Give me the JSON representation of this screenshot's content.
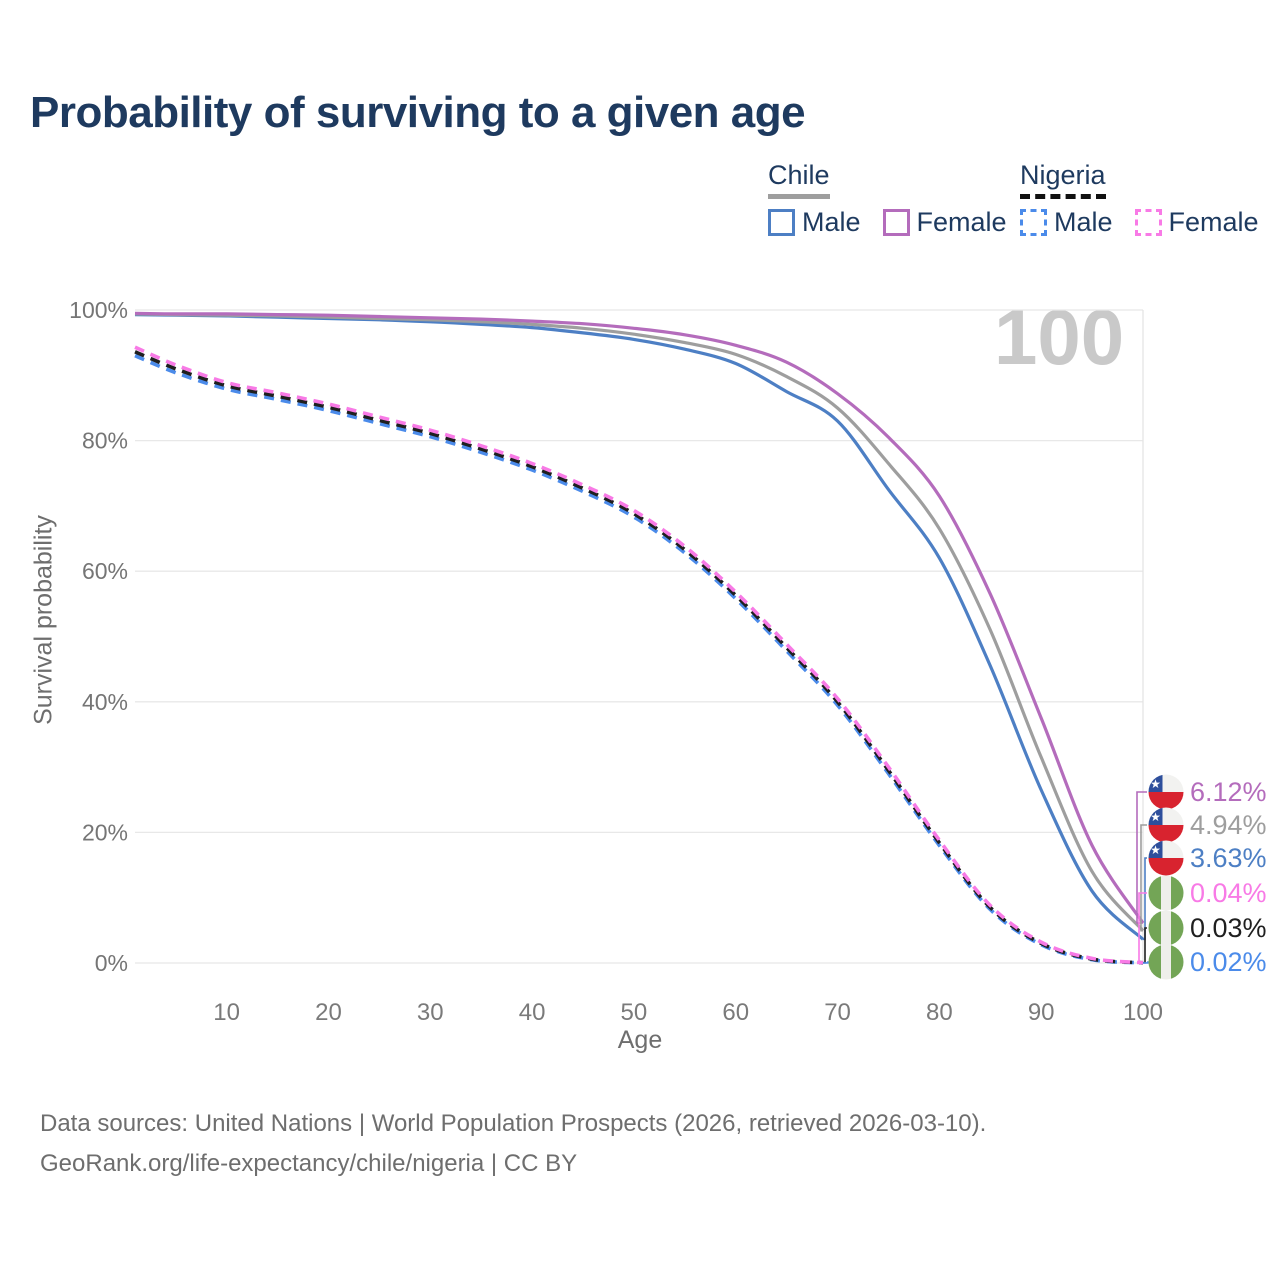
{
  "title": "Probability of surviving to a given age",
  "watermark": "100",
  "legend": {
    "groups": [
      {
        "label": "Chile",
        "line_style": "solid",
        "items": [
          {
            "label": "Male",
            "color": "#4d7fc4"
          },
          {
            "label": "Female",
            "color": "#b46cbc"
          }
        ]
      },
      {
        "label": "Nigeria",
        "line_style": "dashed",
        "items": [
          {
            "label": "Male",
            "color": "#4b8bea"
          },
          {
            "label": "Female",
            "color": "#f87ae6"
          }
        ]
      }
    ]
  },
  "chart_data": {
    "type": "line",
    "title": "Probability of surviving to a given age",
    "xlabel": "Age",
    "ylabel": "Survival probability",
    "xlim": [
      1,
      100
    ],
    "ylim": [
      0,
      100
    ],
    "x_ticks": [
      10,
      20,
      30,
      40,
      50,
      60,
      70,
      80,
      90,
      100
    ],
    "y_ticks": [
      0,
      20,
      40,
      60,
      80,
      100
    ],
    "y_tick_labels": [
      "0%",
      "20%",
      "40%",
      "60%",
      "80%",
      "100%"
    ],
    "grid": "horizontal",
    "legend_position": "top-right",
    "hover_age": 100,
    "x": [
      1,
      5,
      10,
      15,
      20,
      25,
      30,
      35,
      40,
      45,
      50,
      55,
      60,
      65,
      70,
      75,
      80,
      85,
      90,
      95,
      100
    ],
    "series": [
      {
        "id": "chile-male",
        "name": "Chile Male",
        "color": "#4d7fc4",
        "dashed": false,
        "flag": "chile",
        "end_label": "3.63%",
        "values": [
          99.3,
          99.2,
          99.1,
          98.9,
          98.7,
          98.5,
          98.2,
          97.8,
          97.3,
          96.5,
          95.5,
          94.0,
          91.8,
          87.5,
          83.0,
          72.5,
          62.0,
          45.5,
          26.5,
          11.0,
          3.63
        ]
      },
      {
        "id": "chile-both",
        "name": "Chile Both sexes",
        "color": "#9e9e9e",
        "dashed": false,
        "flag": "chile",
        "end_label": "4.94%",
        "values": [
          99.4,
          99.3,
          99.2,
          99.1,
          98.9,
          98.7,
          98.5,
          98.2,
          97.8,
          97.2,
          96.3,
          95.0,
          93.2,
          89.8,
          85.0,
          76.5,
          66.5,
          51.0,
          31.5,
          14.0,
          4.94
        ]
      },
      {
        "id": "chile-female",
        "name": "Chile Female",
        "color": "#b46cbc",
        "dashed": false,
        "flag": "chile",
        "end_label": "6.12%",
        "values": [
          99.5,
          99.4,
          99.4,
          99.3,
          99.2,
          99.0,
          98.8,
          98.6,
          98.3,
          97.9,
          97.2,
          96.2,
          94.6,
          92.0,
          87.2,
          80.5,
          71.5,
          56.5,
          37.5,
          18.0,
          6.12
        ]
      },
      {
        "id": "nigeria-male",
        "name": "Nigeria Male",
        "color": "#4b8bea",
        "dashed": true,
        "flag": "nigeria",
        "end_label": "0.02%",
        "values": [
          93.0,
          90.4,
          87.9,
          86.3,
          84.6,
          82.6,
          80.6,
          78.2,
          75.5,
          72.2,
          68.3,
          62.8,
          55.8,
          47.8,
          39.5,
          29.0,
          18.0,
          8.2,
          2.8,
          0.5,
          0.02
        ]
      },
      {
        "id": "nigeria-both",
        "name": "Nigeria Both sexes",
        "color": "#1f1f1f",
        "dashed": true,
        "flag": "nigeria",
        "end_label": "0.03%",
        "values": [
          93.6,
          91.0,
          88.4,
          86.8,
          85.1,
          83.1,
          81.1,
          78.7,
          76.0,
          72.7,
          68.8,
          63.3,
          56.3,
          48.3,
          40.0,
          29.5,
          18.4,
          8.5,
          3.0,
          0.6,
          0.03
        ]
      },
      {
        "id": "nigeria-female",
        "name": "Nigeria Female",
        "color": "#f87ae6",
        "dashed": true,
        "flag": "nigeria",
        "end_label": "0.04%",
        "values": [
          94.3,
          91.6,
          88.9,
          87.3,
          85.6,
          83.6,
          81.6,
          79.2,
          76.5,
          73.2,
          69.3,
          63.8,
          56.8,
          48.8,
          40.5,
          30.0,
          18.8,
          8.8,
          3.2,
          0.7,
          0.04
        ]
      }
    ]
  },
  "footer": {
    "line1": "Data sources: United Nations | World Population Prospects (2026, retrieved 2026-03-10).",
    "line2": "GeoRank.org/life-expectancy/chile/nigeria | CC BY"
  }
}
